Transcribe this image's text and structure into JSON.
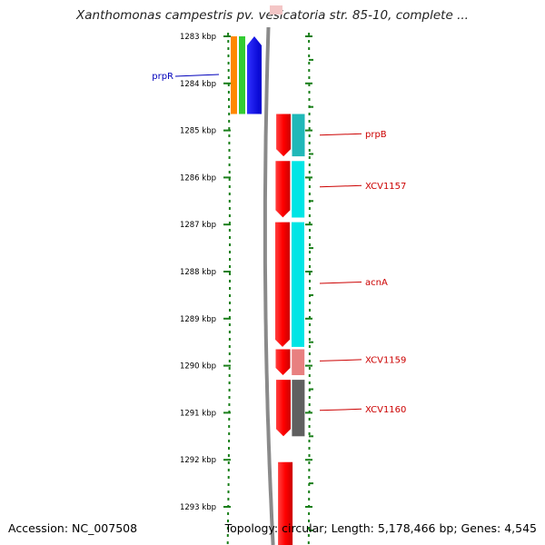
{
  "title": "Xanthomonas campestris pv. vesicatoria str. 85-10, complete ...",
  "footer": {
    "accession": "Accession: NC_007508",
    "summary": "Topology: circular; Length: 5,178,466 bp; Genes: 4,545"
  },
  "scale": {
    "start_kbp": 1283,
    "end_kbp": 1293,
    "ticks": [
      {
        "kbp": 1283,
        "label": "1283 kbp"
      },
      {
        "kbp": 1284,
        "label": "1284 kbp"
      },
      {
        "kbp": 1285,
        "label": "1285 kbp"
      },
      {
        "kbp": 1286,
        "label": "1286 kbp"
      },
      {
        "kbp": 1287,
        "label": "1287 kbp"
      },
      {
        "kbp": 1288,
        "label": "1288 kbp"
      },
      {
        "kbp": 1289,
        "label": "1289 kbp"
      },
      {
        "kbp": 1290,
        "label": "1290 kbp"
      },
      {
        "kbp": 1291,
        "label": "1291 kbp"
      },
      {
        "kbp": 1292,
        "label": "1292 kbp"
      },
      {
        "kbp": 1293,
        "label": "1293 kbp"
      }
    ]
  },
  "colors": {
    "backbone": "#8a8a8a",
    "dots": "#1a7f1a",
    "cds": "#ff0000",
    "label_red": "#cc0000",
    "label_blue": "#0000bb"
  },
  "genes": [
    {
      "name": "prpR",
      "start_kbp": 1283.0,
      "end_kbp": 1284.65,
      "strand": "reverse",
      "color": "#0000ff",
      "label": "prpR",
      "label_side": "left",
      "label_color": "#0000bb",
      "label_at_kbp": 1283.85
    },
    {
      "name": "prpB",
      "start_kbp": 1284.65,
      "end_kbp": 1285.55,
      "strand": "forward",
      "color": "#ff0000",
      "label": "prpB",
      "label_side": "right",
      "label_color": "#cc0000",
      "label_at_kbp": 1285.1
    },
    {
      "name": "XCV1157",
      "start_kbp": 1285.65,
      "end_kbp": 1286.85,
      "strand": "forward",
      "color": "#ff0000",
      "label": "XCV1157",
      "label_side": "right",
      "label_color": "#cc0000",
      "label_at_kbp": 1286.2
    },
    {
      "name": "acnA",
      "start_kbp": 1286.95,
      "end_kbp": 1289.6,
      "strand": "forward",
      "color": "#ff0000",
      "label": "acnA",
      "label_side": "right",
      "label_color": "#cc0000",
      "label_at_kbp": 1288.25
    },
    {
      "name": "XCV1159",
      "start_kbp": 1289.65,
      "end_kbp": 1290.2,
      "strand": "forward",
      "color": "#ff0000",
      "label": "XCV1159",
      "label_side": "right",
      "label_color": "#cc0000",
      "label_at_kbp": 1289.9
    },
    {
      "name": "XCV1160",
      "start_kbp": 1290.3,
      "end_kbp": 1291.5,
      "strand": "forward",
      "color": "#ff0000",
      "label": "XCV1160",
      "label_side": "right",
      "label_color": "#cc0000",
      "label_at_kbp": 1290.95
    },
    {
      "name": "next-gene",
      "start_kbp": 1292.05,
      "end_kbp": 1294.0,
      "strand": "forward",
      "color": "#ff0000",
      "label": "",
      "label_side": "right",
      "label_color": "#cc0000",
      "label_at_kbp": 1293.0
    }
  ],
  "feature_bars": [
    {
      "name": "orange-bar",
      "start_kbp": 1283.0,
      "end_kbp": 1284.65,
      "color": "#ff8800",
      "lane": 0
    },
    {
      "name": "green-bar",
      "start_kbp": 1283.0,
      "end_kbp": 1284.65,
      "color": "#33cc33",
      "lane": 1
    },
    {
      "name": "teal-bar-prpB",
      "start_kbp": 1284.65,
      "end_kbp": 1285.55,
      "color": "#20b8b8",
      "lane": 2
    },
    {
      "name": "cyan-bar-XCV1157",
      "start_kbp": 1285.65,
      "end_kbp": 1286.85,
      "color": "#00e5e5",
      "lane": 2
    },
    {
      "name": "cyan-bar-acnA",
      "start_kbp": 1286.95,
      "end_kbp": 1289.6,
      "color": "#00e5e5",
      "lane": 2
    },
    {
      "name": "pink-bar-XCV1159",
      "start_kbp": 1289.65,
      "end_kbp": 1290.2,
      "color": "#e88080",
      "lane": 2
    },
    {
      "name": "gray-bar-XCV1160",
      "start_kbp": 1290.3,
      "end_kbp": 1291.5,
      "color": "#606060",
      "lane": 2
    }
  ]
}
